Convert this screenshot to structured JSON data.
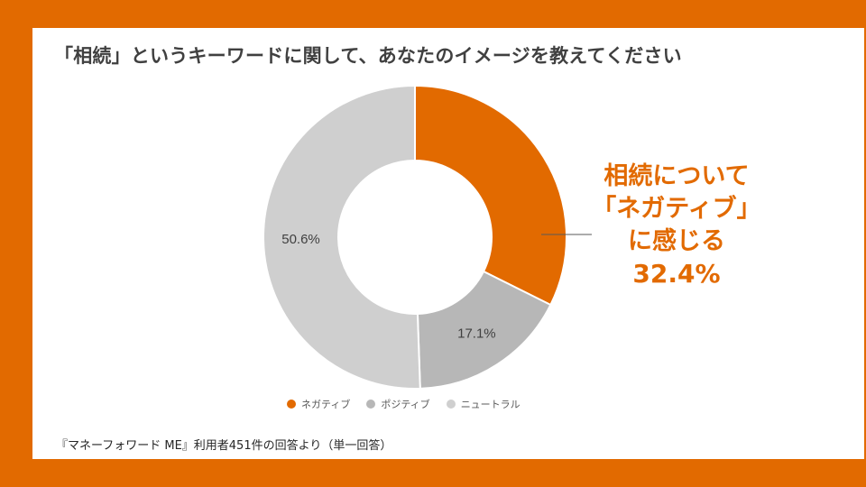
{
  "title": "「相続」というキーワードに関して、あなたのイメージを教えてください",
  "chart_data": {
    "type": "pie",
    "title": "「相続」というキーワードに関して、あなたのイメージを教えてください",
    "categories": [
      "ネガティブ",
      "ポジティブ",
      "ニュートラル"
    ],
    "values": [
      32.4,
      17.1,
      50.6
    ],
    "colors": [
      "#E26A00",
      "#B7B7B7",
      "#CFCFCF"
    ],
    "data_labels": [
      "",
      "17.1%",
      "50.6%"
    ],
    "legend_position": "bottom",
    "donut": true
  },
  "callout": {
    "line1": "相続について",
    "line2": "「ネガティブ」",
    "line3": "に感じる",
    "value": "32.4%"
  },
  "legend": [
    {
      "label": "ネガティブ",
      "color": "#E26A00"
    },
    {
      "label": "ポジティブ",
      "color": "#B7B7B7"
    },
    {
      "label": "ニュートラル",
      "color": "#CFCFCF"
    }
  ],
  "source_note": "『マネーフォワード ME』利用者451件の回答より（単一回答）"
}
